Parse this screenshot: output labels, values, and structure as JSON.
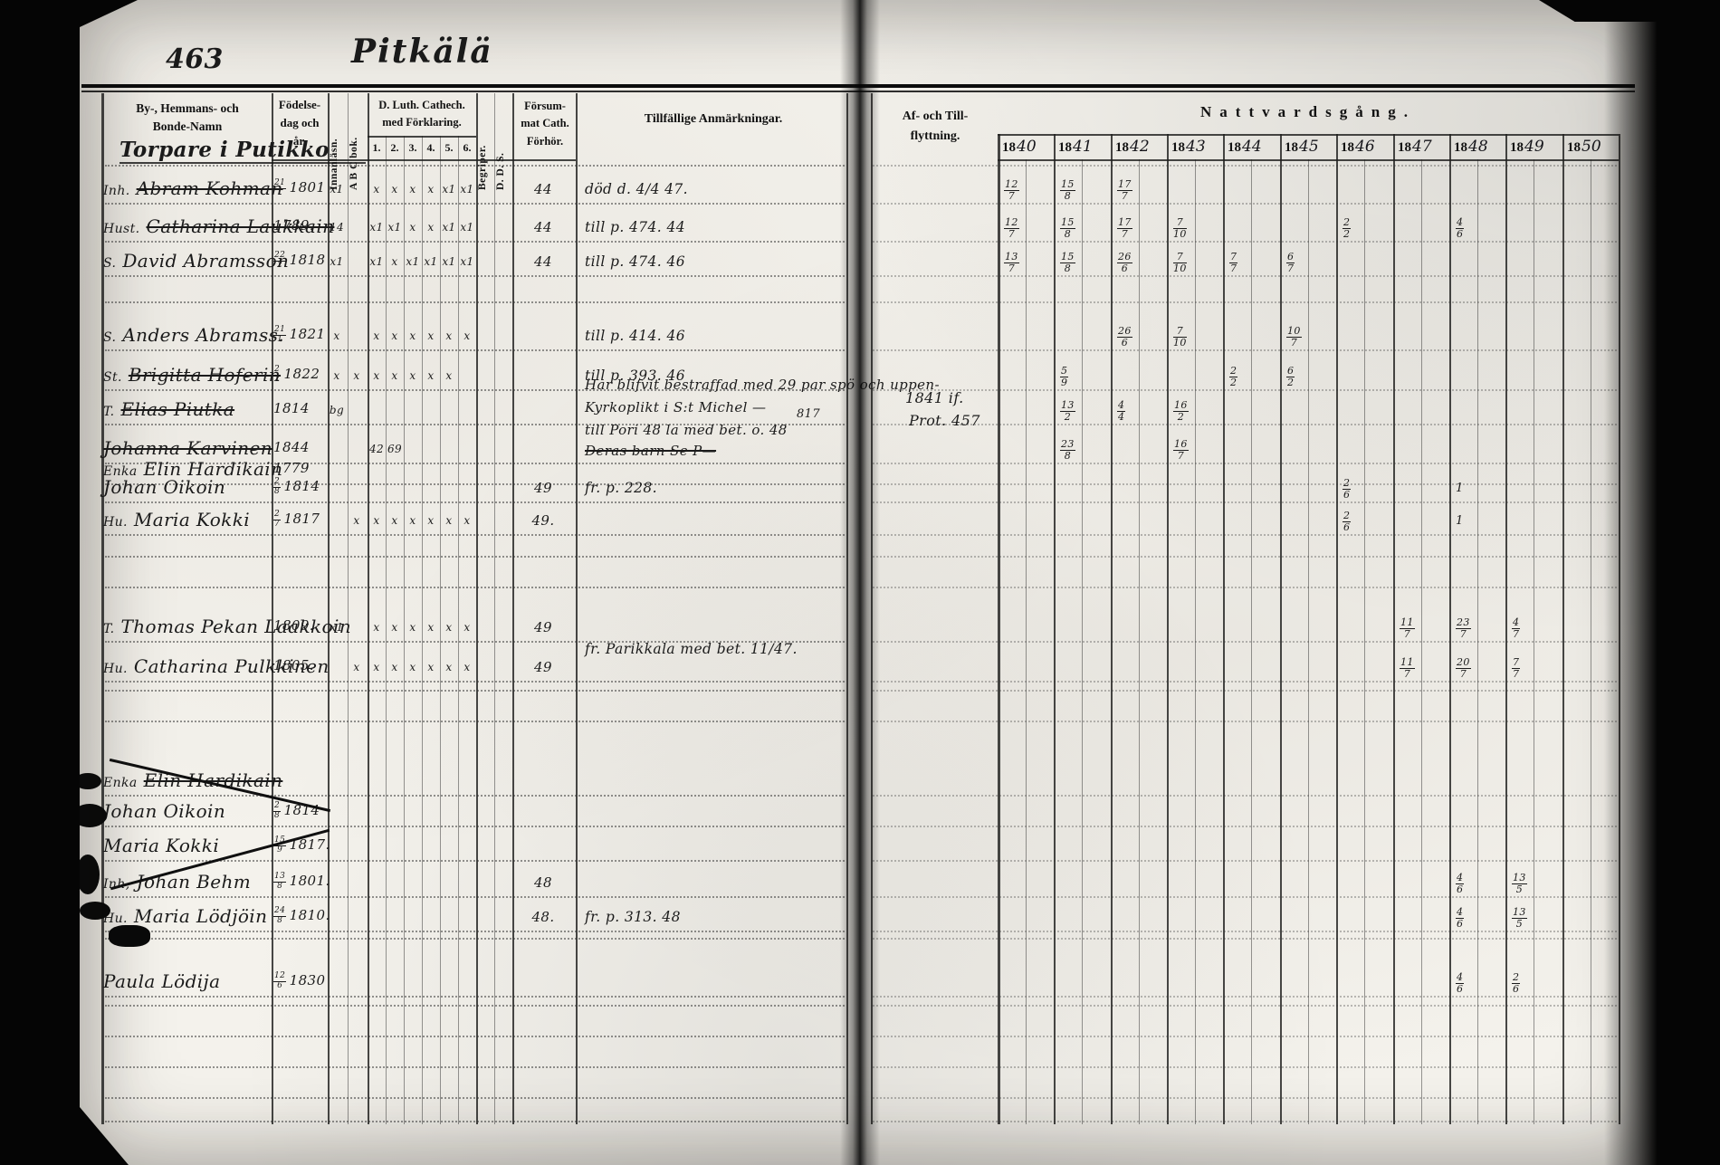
{
  "page": {
    "page_number": "463",
    "title": "Pitkälä"
  },
  "table": {
    "headers": {
      "name_lines": [
        "By-, Hemmans- och",
        "Bonde-Namn"
      ],
      "birth_lines": [
        "Födelse-",
        "dag och",
        "år."
      ],
      "innanlasn": "Innanläsn.",
      "abc": "A B C bok.",
      "cathech_lines": [
        "D. Luth. Cathech.",
        "med Förklaring."
      ],
      "cathech_cols": [
        "1.",
        "2.",
        "3.",
        "4.",
        "5.",
        "6."
      ],
      "begriper": "Begriper.",
      "dds": "D. D. S.",
      "forsummat_lines": [
        "Försum-",
        "mat Cath.",
        "Förhör."
      ],
      "anmarkningar": "Tillfällige Anmärkningar.",
      "aftill_lines": [
        "Af- och Till-",
        "flyttning."
      ],
      "nattvard": "Nattvardsgång.",
      "year_prefix": "18",
      "years": [
        "40",
        "41",
        "42",
        "43",
        "44",
        "45",
        "46",
        "47",
        "48",
        "49",
        "50"
      ]
    },
    "rows": [
      {
        "type": "heading",
        "text": "Torpare i Putikko"
      },
      {
        "prefix": "Inh.",
        "name": "Abram Kohman",
        "struck": true,
        "birth_day": "21/1",
        "birth_year": "1801",
        "marks": [
          "x1",
          "",
          "x",
          "x",
          "x",
          "x",
          "x1",
          "x1"
        ],
        "forsummat": "44",
        "remark": "död d. 4/4 47.",
        "nattvard": [
          {
            "y": 0,
            "v": "12/7"
          },
          {
            "y": 1,
            "v": "15/8"
          },
          {
            "y": 2,
            "v": "17/7"
          }
        ]
      },
      {
        "prefix": "Hust.",
        "name": "Catharina Laukkain",
        "struck": true,
        "birth_day": "",
        "birth_year": "1789.",
        "marks": [
          "14",
          "",
          "x1",
          "x1",
          "x",
          "x",
          "x1",
          "x1"
        ],
        "forsummat": "44",
        "remark": "till p. 474. 44",
        "nattvard": [
          {
            "y": 0,
            "v": "12/7"
          },
          {
            "y": 1,
            "v": "15/8"
          },
          {
            "y": 2,
            "v": "17/7"
          },
          {
            "y": 3,
            "v": "7/10"
          },
          {
            "y": 6,
            "v": "2/2"
          },
          {
            "y": 8,
            "v": "4/6"
          }
        ]
      },
      {
        "prefix": "S.",
        "name": "David Abramsson",
        "struck": false,
        "birth_day": "22/2",
        "birth_year": "1818",
        "marks": [
          "x1",
          "",
          "x1",
          "x",
          "x1",
          "x1",
          "x1",
          "x1"
        ],
        "forsummat": "44",
        "remark": "till p. 474. 46",
        "nattvard": [
          {
            "y": 0,
            "v": "13/7"
          },
          {
            "y": 1,
            "v": "15/8"
          },
          {
            "y": 2,
            "v": "26/6"
          },
          {
            "y": 3,
            "v": "7/10"
          },
          {
            "y": 4,
            "v": "7/7"
          },
          {
            "y": 5,
            "v": "6/7"
          }
        ]
      },
      {
        "prefix": "S.",
        "name": "Anders Abramss.",
        "struck": false,
        "birth_day": "21/1",
        "birth_year": "1821",
        "marks": [
          "x",
          "",
          "x",
          "x",
          "x",
          "x",
          "x",
          "x"
        ],
        "forsummat": "",
        "remark": "till p. 414. 46",
        "nattvard": [
          {
            "y": 2,
            "v": "26/6"
          },
          {
            "y": 3,
            "v": "7/10"
          },
          {
            "y": 5,
            "v": "10/7"
          }
        ]
      },
      {
        "prefix": "St.",
        "name": "Brigitta Hoferin",
        "struck": true,
        "birth_day": "2/2",
        "birth_year": "1822",
        "marks": [
          "x",
          "x",
          "x",
          "x",
          "x",
          "x",
          "x",
          ""
        ],
        "forsummat": "",
        "remark": "till p. 393. 46",
        "nattvard": [
          {
            "y": 1,
            "v": "5/9"
          },
          {
            "y": 4,
            "v": "2/2"
          },
          {
            "y": 5,
            "v": "6/2"
          }
        ]
      },
      {
        "prefix": "T.",
        "name": "Elias Piutka",
        "struck": true,
        "birth_day": "",
        "birth_year": "1814",
        "marks": [
          "bg",
          "",
          "",
          "",
          "",
          "",
          "",
          ""
        ],
        "forsummat": "",
        "remark": "",
        "nattvard": [
          {
            "y": 1,
            "v": "13/2"
          },
          {
            "y": 2,
            "v": "4/4"
          },
          {
            "y": 3,
            "v": "16/2"
          }
        ]
      },
      {
        "prefix": "",
        "name": "Johanna Karvinen",
        "struck": true,
        "birth_day": "",
        "birth_year": "1844",
        "marks": [
          "",
          "",
          "42",
          "69",
          "",
          "",
          "",
          ""
        ],
        "forsummat": "",
        "remark": "",
        "nattvard": [
          {
            "y": 1,
            "v": "23/8"
          },
          {
            "y": 3,
            "v": "16/7"
          }
        ]
      },
      {
        "prefix": "Enka",
        "name": "Elin Hardikain",
        "struck": false,
        "birth_day": "",
        "birth_year": "1779",
        "marks": [],
        "forsummat": "",
        "remark": "",
        "nattvard": []
      },
      {
        "prefix": "",
        "name": "Johan Oikoin",
        "struck": false,
        "birth_day": "2/8",
        "birth_year": "1814",
        "marks": [],
        "forsummat": "49",
        "remark": "fr. p. 228.",
        "nattvard": [
          {
            "y": 6,
            "v": "2/6"
          },
          {
            "y": 8,
            "v": "1"
          }
        ]
      },
      {
        "prefix": "Hu.",
        "name": "Maria Kokki",
        "struck": false,
        "birth_day": "2/7",
        "birth_year": "1817",
        "marks": [
          "",
          "x",
          "x",
          "x",
          "x",
          "x",
          "x",
          "x"
        ],
        "forsummat": "49.",
        "remark": "",
        "nattvard": [
          {
            "y": 6,
            "v": "2/6"
          },
          {
            "y": 8,
            "v": "1"
          }
        ]
      },
      {
        "prefix": "T.",
        "name": "Thomas Pekan Laakkoin",
        "struck": false,
        "birth_day": "",
        "birth_year": "1809.",
        "marks": [
          "x1",
          "",
          "x",
          "x",
          "x",
          "x",
          "x",
          "x"
        ],
        "forsummat": "49",
        "remark": "fr. Parikkala med bet. 11/47.",
        "nattvard": [
          {
            "y": 7,
            "v": "11/7"
          },
          {
            "y": 8,
            "v": "23/7"
          },
          {
            "y": 9,
            "v": "4/7"
          }
        ]
      },
      {
        "prefix": "Hu.",
        "name": "Catharina Pulkkinen",
        "struck": false,
        "birth_day": "",
        "birth_year": "1805.",
        "marks": [
          "",
          "x",
          "x",
          "x",
          "x",
          "x",
          "x",
          "x"
        ],
        "forsummat": "49",
        "remark": "",
        "nattvard": [
          {
            "y": 7,
            "v": "11/7"
          },
          {
            "y": 8,
            "v": "20/7"
          },
          {
            "y": 9,
            "v": "7/7"
          }
        ]
      },
      {
        "prefix": "Enka",
        "name": "Elin Hardikain",
        "struck": true,
        "birth_day": "",
        "birth_year": "",
        "marks": [],
        "forsummat": "",
        "remark": "",
        "nattvard": []
      },
      {
        "prefix": "",
        "name": "Johan Oikoin",
        "struck": false,
        "birth_day": "2/8",
        "birth_year": "1814",
        "marks": [],
        "forsummat": "",
        "remark": "",
        "nattvard": []
      },
      {
        "prefix": "",
        "name": "Maria Kokki",
        "struck": false,
        "birth_day": "15/9",
        "birth_year": "1817.",
        "marks": [],
        "forsummat": "",
        "remark": "",
        "nattvard": []
      },
      {
        "prefix": "Inh,",
        "name": "Johan Behm",
        "struck": false,
        "birth_day": "13/8",
        "birth_year": "1801.",
        "marks": [],
        "forsummat": "48",
        "remark": "",
        "nattvard": [
          {
            "y": 8,
            "v": "4/6"
          },
          {
            "y": 9,
            "v": "13/5"
          }
        ]
      },
      {
        "prefix": "Hu.",
        "name": "Maria Lödjöin",
        "struck": false,
        "birth_day": "24/8",
        "birth_year": "1810.",
        "marks": [],
        "forsummat": "48.",
        "remark": "fr. p. 313. 48",
        "nattvard": [
          {
            "y": 8,
            "v": "4/6"
          },
          {
            "y": 9,
            "v": "13/5"
          }
        ]
      },
      {
        "prefix": "",
        "name": "Paula Lödija",
        "struck": false,
        "birth_day": "12/6",
        "birth_year": "1830",
        "marks": [],
        "forsummat": "",
        "remark": "",
        "nattvard": [
          {
            "y": 8,
            "v": "4/6"
          },
          {
            "y": 9,
            "v": "2/6"
          }
        ]
      }
    ],
    "notes": [
      "Har blifvit bestraffad med 29 par spö och uppen-",
      "Kyrkoplikt i S:t Michel —",
      "till Pori 48 la med bet. o. 48",
      "817",
      "Deras barn Se P—",
      "1841 if.",
      "Prot. 457"
    ]
  }
}
